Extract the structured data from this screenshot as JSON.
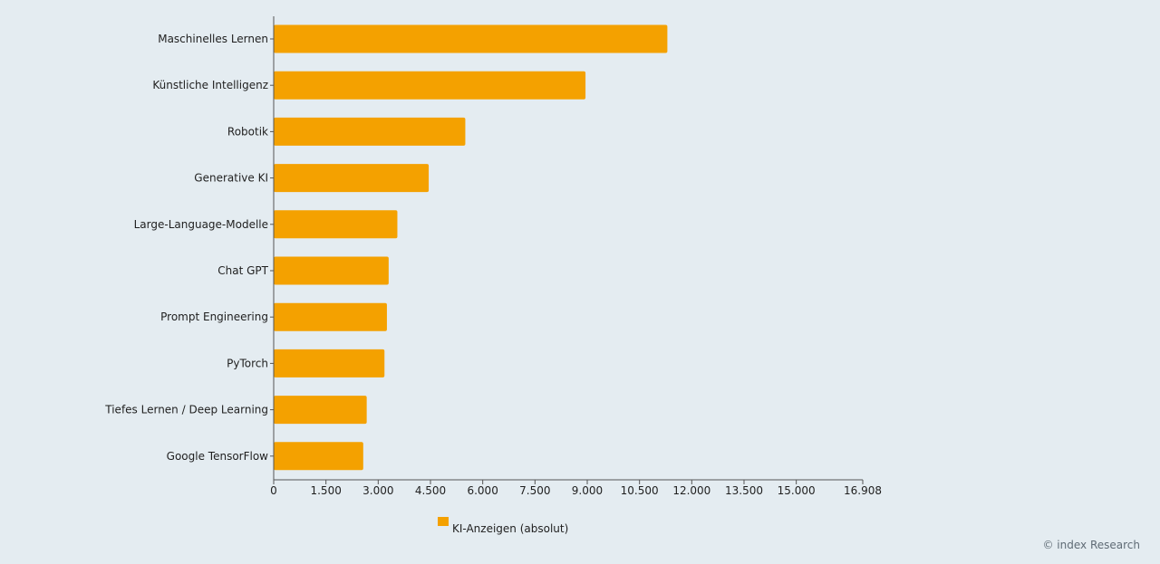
{
  "chart_data": {
    "type": "bar",
    "orientation": "horizontal",
    "categories": [
      "Maschinelles Lernen",
      "Künstliche Intelligenz",
      "Robotik",
      "Generative KI",
      "Large-Language-Modelle",
      "Chat GPT",
      "Prompt Engineering",
      "PyTorch",
      "Tiefes Lernen / Deep Learning",
      "Google TensorFlow"
    ],
    "series": [
      {
        "name": "KI-Anzeigen (absolut)",
        "color": "#f4a100",
        "values": [
          11300,
          8950,
          5500,
          4450,
          3550,
          3300,
          3250,
          3180,
          2670,
          2570
        ]
      }
    ],
    "xlim": [
      0,
      16908
    ],
    "xticks": [
      0,
      1500,
      3000,
      4500,
      6000,
      7500,
      9000,
      10500,
      12000,
      13500,
      15000,
      16908
    ],
    "xtick_labels": [
      "0",
      "1.500",
      "3.000",
      "4.500",
      "6.000",
      "7.500",
      "9.000",
      "10.500",
      "12.000",
      "13.500",
      "15.000",
      "16.908"
    ],
    "title": "",
    "xlabel": "",
    "ylabel": "",
    "legend": {
      "placement": "bottom",
      "label": "KI-Anzeigen (absolut)"
    },
    "grid": false
  },
  "credit": "© index Research"
}
